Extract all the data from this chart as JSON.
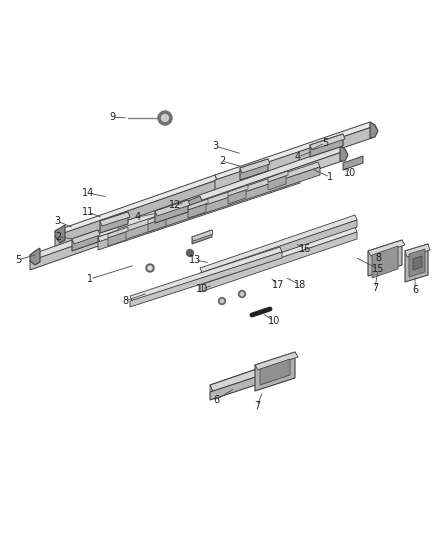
{
  "background_color": "#ffffff",
  "dark_line": "#404040",
  "fig_width": 4.38,
  "fig_height": 5.33,
  "dpi": 100,
  "frame_color": "#c8c8c8",
  "frame_dark": "#a0a0a0",
  "frame_light": "#e0e0e0",
  "bracket_color": "#b0b0b0",
  "bracket_top": "#d5d5d5",
  "label_fs": 7.0
}
